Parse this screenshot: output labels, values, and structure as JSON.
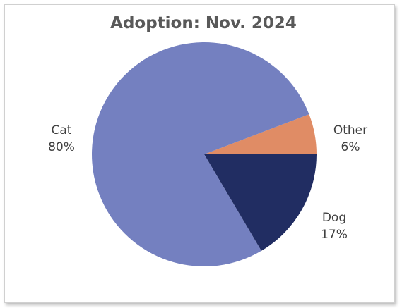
{
  "chart_data": {
    "type": "pie",
    "title": "Adoption: Nov. 2024",
    "categories": [
      "Cat",
      "Dog",
      "Other"
    ],
    "values": [
      80,
      17,
      6
    ],
    "value_labels": [
      "80%",
      "17%",
      "6%"
    ],
    "colors": [
      "#7480c0",
      "#212d62",
      "#e08c65"
    ],
    "legend": "none"
  }
}
